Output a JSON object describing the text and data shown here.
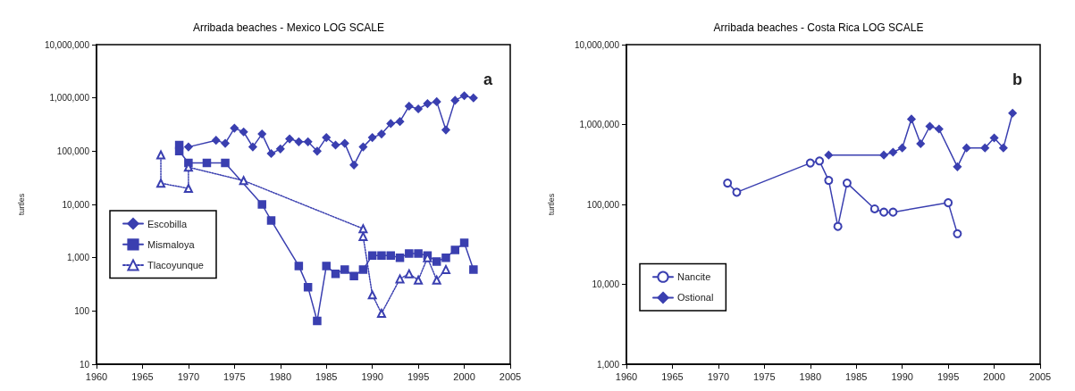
{
  "chart_data": [
    {
      "type": "line",
      "title": "Arribada beaches - Mexico LOG SCALE",
      "ylabel": "turtles",
      "annotations": [
        "a"
      ],
      "log": "y",
      "grid": false,
      "legend": "left",
      "xlim": [
        1960,
        2005
      ],
      "xticks": [
        1960,
        1965,
        1970,
        1975,
        1980,
        1985,
        1990,
        1995,
        2000,
        2005
      ],
      "ylim": [
        10,
        10000000
      ],
      "yticks": [
        {
          "value": 10,
          "label": "10"
        },
        {
          "value": 100,
          "label": "100"
        },
        {
          "value": 1000,
          "label": "1,000"
        },
        {
          "value": 10000,
          "label": "10,000"
        },
        {
          "value": 100000,
          "label": "100,000"
        },
        {
          "value": 1000000,
          "label": "1,000,000"
        },
        {
          "value": 10000000,
          "label": "10,000,000"
        }
      ],
      "series": [
        {
          "name": "Escobilla",
          "color": "#3a3fb0",
          "marker": "diamond",
          "line_style": "solid",
          "x": [
            1970,
            1973,
            1974,
            1975,
            1976,
            1977,
            1978,
            1979,
            1980,
            1981,
            1982,
            1983,
            1984,
            1985,
            1986,
            1987,
            1988,
            1989,
            1990,
            1991,
            1992,
            1993,
            1994,
            1995,
            1996,
            1997,
            1998,
            1999,
            2000,
            2001
          ],
          "values": [
            120000,
            160000,
            140000,
            270000,
            230000,
            120000,
            210000,
            90000,
            110000,
            170000,
            150000,
            150000,
            100000,
            180000,
            130000,
            140000,
            55000,
            120000,
            180000,
            210000,
            330000,
            360000,
            700000,
            620000,
            780000,
            850000,
            250000,
            900000,
            1100000,
            1000000
          ]
        },
        {
          "name": "Mismaloya",
          "color": "#3a3fb0",
          "marker": "square",
          "line_style": "solid",
          "x": [
            1969,
            1969,
            1970,
            1972,
            1974,
            1978,
            1979,
            1982,
            1983,
            1984,
            1985,
            1986,
            1987,
            1988,
            1989,
            1990,
            1991,
            1992,
            1993,
            1994,
            1995,
            1996,
            1997,
            1998,
            1999,
            2000,
            2001
          ],
          "values": [
            130000,
            100000,
            60000,
            60000,
            60000,
            10000,
            5000,
            700,
            280,
            65,
            700,
            500,
            600,
            450,
            600,
            1100,
            1100,
            1100,
            1000,
            1200,
            1200,
            1100,
            850,
            1000,
            1400,
            1900,
            600
          ]
        },
        {
          "name": "Tlacoyunque",
          "color": "#3a3fb0",
          "marker": "triangle",
          "line_style": "dotted",
          "x": [
            1967,
            1967,
            1970,
            1970,
            1976,
            1989,
            1989,
            1990,
            1991,
            1993,
            1994,
            1995,
            1996,
            1997,
            1998
          ],
          "values": [
            85000,
            25000,
            20000,
            50000,
            28000,
            3500,
            2500,
            200,
            90,
            400,
            500,
            380,
            1000,
            380,
            600
          ]
        }
      ]
    },
    {
      "type": "line",
      "title": "Arribada beaches - Costa Rica LOG SCALE",
      "ylabel": "turtles",
      "annotations": [
        "b"
      ],
      "log": "y",
      "grid": false,
      "legend": "bottom left",
      "xlim": [
        1960,
        2005
      ],
      "xticks": [
        1960,
        1965,
        1970,
        1975,
        1980,
        1985,
        1990,
        1995,
        2000,
        2005
      ],
      "ylim": [
        1000,
        10000000
      ],
      "yticks": [
        {
          "value": 1000,
          "label": "1,000"
        },
        {
          "value": 10000,
          "label": "10,000"
        },
        {
          "value": 100000,
          "label": "100,000"
        },
        {
          "value": 1000000,
          "label": "1,000,000"
        },
        {
          "value": 10000000,
          "label": "10,000,000"
        }
      ],
      "series": [
        {
          "name": "Nancite",
          "color": "#3a3fb0",
          "marker": "circle",
          "line_style": "solid",
          "x": [
            1971,
            1972,
            1980,
            1981,
            1982,
            1983,
            1984,
            1987,
            1988,
            1989,
            1995,
            1996
          ],
          "values": [
            185000,
            142000,
            330000,
            350000,
            200000,
            53000,
            185000,
            88000,
            80000,
            80000,
            105000,
            43000
          ]
        },
        {
          "name": "Ostional",
          "color": "#3a3fb0",
          "marker": "diamond",
          "line_style": "solid",
          "x": [
            1982,
            1988,
            1989,
            1990,
            1991,
            1992,
            1993,
            1994,
            1996,
            1997,
            1999,
            2000,
            2001,
            2002
          ],
          "values": [
            415000,
            415000,
            450000,
            510000,
            1170000,
            575000,
            950000,
            880000,
            296000,
            510000,
            510000,
            680000,
            510000,
            1390000
          ]
        }
      ]
    }
  ]
}
